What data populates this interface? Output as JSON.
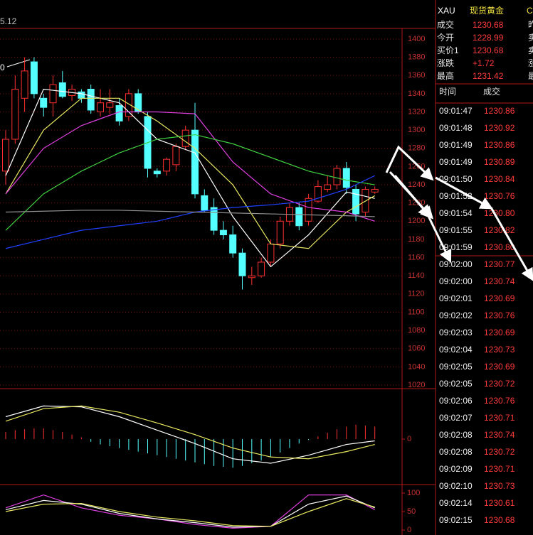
{
  "top_label": "5.12",
  "left_label": "0",
  "chart_data": [
    {
      "type": "candlestick",
      "up_color": "#ff3030",
      "down_color": "#54ffff",
      "ylim": [
        1020,
        1400
      ],
      "yticks": [
        1020,
        1040,
        1060,
        1080,
        1100,
        1120,
        1140,
        1160,
        1180,
        1200,
        1220,
        1240,
        1260,
        1280,
        1300,
        1320,
        1340,
        1360,
        1380,
        1400
      ],
      "candles": {
        "open": [
          1255,
          1290,
          1335,
          1375,
          1335,
          1330,
          1352,
          1338,
          1342,
          1345,
          1320,
          1325,
          1327,
          1315,
          1340,
          1315,
          1255,
          1255,
          1262,
          1282,
          1300,
          1228,
          1215,
          1190,
          1185,
          1165,
          1138,
          1140,
          1155,
          1175,
          1200,
          1215,
          1200,
          1222,
          1235,
          1240,
          1258,
          1235,
          1210,
          1232
        ],
        "high": [
          1300,
          1360,
          1380,
          1380,
          1340,
          1360,
          1365,
          1350,
          1345,
          1350,
          1345,
          1345,
          1335,
          1345,
          1345,
          1320,
          1258,
          1270,
          1285,
          1305,
          1330,
          1235,
          1225,
          1200,
          1195,
          1170,
          1150,
          1160,
          1180,
          1205,
          1220,
          1220,
          1230,
          1245,
          1250,
          1262,
          1265,
          1240,
          1238,
          1238
        ],
        "low": [
          1240,
          1285,
          1320,
          1335,
          1315,
          1315,
          1335,
          1332,
          1330,
          1318,
          1315,
          1318,
          1305,
          1310,
          1318,
          1248,
          1248,
          1250,
          1255,
          1278,
          1225,
          1210,
          1185,
          1180,
          1160,
          1125,
          1130,
          1138,
          1150,
          1170,
          1195,
          1190,
          1195,
          1220,
          1232,
          1235,
          1230,
          1200,
          1205,
          1230
        ],
        "close": [
          1290,
          1345,
          1365,
          1340,
          1325,
          1350,
          1337,
          1345,
          1335,
          1322,
          1330,
          1330,
          1310,
          1340,
          1320,
          1258,
          1252,
          1268,
          1282,
          1300,
          1230,
          1212,
          1190,
          1185,
          1165,
          1140,
          1140,
          1155,
          1175,
          1200,
          1215,
          1195,
          1225,
          1238,
          1240,
          1258,
          1237,
          1208,
          1235,
          1235
        ]
      },
      "ma_x": [
        0,
        4,
        8,
        12,
        16,
        20,
        24,
        28,
        32,
        36,
        39
      ],
      "ma_series": [
        {
          "color": "#ffffff",
          "values": [
            1250,
            1345,
            1340,
            1330,
            1290,
            1275,
            1205,
            1150,
            1185,
            1232,
            1225
          ]
        },
        {
          "color": "#e8e860",
          "values": [
            1230,
            1300,
            1335,
            1335,
            1310,
            1280,
            1240,
            1175,
            1170,
            1210,
            1228
          ]
        },
        {
          "color": "#e040e0",
          "values": [
            1230,
            1280,
            1305,
            1320,
            1320,
            1318,
            1265,
            1230,
            1215,
            1210,
            1200
          ]
        },
        {
          "color": "#40d040",
          "values": [
            1190,
            1230,
            1255,
            1275,
            1290,
            1295,
            1285,
            1270,
            1255,
            1245,
            1240
          ]
        },
        {
          "color": "#2040ff",
          "values": [
            1170,
            1180,
            1190,
            1195,
            1200,
            1210,
            1215,
            1218,
            1222,
            1235,
            1250
          ]
        },
        {
          "color": "#909090",
          "values": [
            1210,
            1211,
            1212,
            1212,
            1211,
            1210,
            1209,
            1208,
            1207,
            1206,
            1205
          ]
        }
      ]
    },
    {
      "type": "bar",
      "ylim": [
        -50,
        50
      ],
      "yticks": [
        0
      ],
      "values": [
        8,
        10,
        11,
        12,
        12,
        10,
        8,
        5,
        2,
        -3,
        -6,
        -8,
        -10,
        -12,
        -14,
        -16,
        -18,
        -20,
        -22,
        -24,
        -26,
        -28,
        -30,
        -31,
        -32,
        -30,
        -27,
        -24,
        -20,
        -15,
        -10,
        -5,
        -1,
        3,
        7,
        11,
        14,
        16,
        15,
        14
      ],
      "line_x": [
        0,
        4,
        8,
        12,
        16,
        20,
        24,
        28,
        32,
        36,
        39
      ],
      "lines": [
        {
          "color": "#ffffff",
          "values": [
            25,
            37,
            36,
            25,
            10,
            -5,
            -22,
            -27,
            -18,
            -6,
            -2
          ]
        },
        {
          "color": "#e8e860",
          "values": [
            20,
            34,
            37,
            30,
            18,
            5,
            -10,
            -20,
            -22,
            -14,
            -6
          ]
        }
      ]
    },
    {
      "type": "line",
      "ylim": [
        0,
        100
      ],
      "yticks": [
        100,
        50,
        0
      ],
      "x": [
        0,
        4,
        8,
        12,
        16,
        20,
        24,
        28,
        32,
        36,
        39
      ],
      "series": [
        {
          "color": "#e040e0",
          "values": [
            60,
            95,
            60,
            40,
            30,
            15,
            5,
            10,
            95,
            95,
            55
          ]
        },
        {
          "color": "#ffffff",
          "values": [
            55,
            80,
            70,
            45,
            30,
            20,
            8,
            10,
            70,
            92,
            60
          ]
        },
        {
          "color": "#e8e860",
          "values": [
            50,
            70,
            72,
            50,
            35,
            25,
            12,
            10,
            50,
            85,
            62
          ]
        }
      ]
    }
  ],
  "quote": {
    "symbol": "XAU",
    "name": "现货黄金",
    "name_cut": "C",
    "rows": [
      [
        "成交",
        "1230.68",
        "昨"
      ],
      [
        "今开",
        "1228.99",
        "卖"
      ],
      [
        "买价1",
        "1230.68",
        "卖"
      ],
      [
        "涨跌",
        "+1.72",
        "涨"
      ],
      [
        "最高",
        "1231.42",
        "最"
      ]
    ]
  },
  "trades": {
    "header": [
      "时间",
      "成交"
    ],
    "rows": [
      [
        "09:01:47",
        "1230.86"
      ],
      [
        "09:01:48",
        "1230.92"
      ],
      [
        "09:01:49",
        "1230.86"
      ],
      [
        "09:01:49",
        "1230.89"
      ],
      [
        "09:01:50",
        "1230.84"
      ],
      [
        "09:01:52",
        "1230.76"
      ],
      [
        "09:01:54",
        "1230.80"
      ],
      [
        "09:01:55",
        "1230.82"
      ],
      [
        "09:01:59",
        "1230.80"
      ],
      [
        "09:02:00",
        "1230.77"
      ],
      [
        "09:02:00",
        "1230.74"
      ],
      [
        "09:02:01",
        "1230.69"
      ],
      [
        "09:02:02",
        "1230.76"
      ],
      [
        "09:02:03",
        "1230.69"
      ],
      [
        "09:02:04",
        "1230.73"
      ],
      [
        "09:02:05",
        "1230.69"
      ],
      [
        "09:02:05",
        "1230.72"
      ],
      [
        "09:02:06",
        "1230.76"
      ],
      [
        "09:02:07",
        "1230.71"
      ],
      [
        "09:02:08",
        "1230.74"
      ],
      [
        "09:02:08",
        "1230.72"
      ],
      [
        "09:02:09",
        "1230.71"
      ],
      [
        "09:02:10",
        "1230.73"
      ],
      [
        "09:02:14",
        "1230.61"
      ],
      [
        "09:02:15",
        "1230.68"
      ]
    ]
  }
}
